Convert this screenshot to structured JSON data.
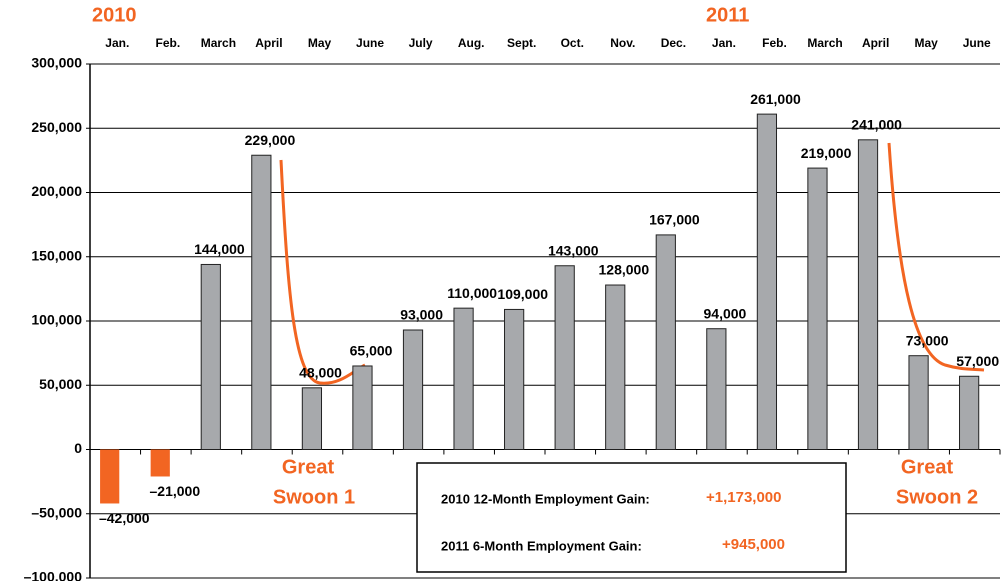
{
  "chart_data": {
    "type": "bar",
    "categories": [
      "Jan.",
      "Feb.",
      "March",
      "April",
      "May",
      "June",
      "July",
      "Aug.",
      "Sept.",
      "Oct.",
      "Nov.",
      "Dec.",
      "Jan.",
      "Feb.",
      "March",
      "April",
      "May",
      "June"
    ],
    "values": [
      -42000,
      -21000,
      144000,
      229000,
      48000,
      65000,
      93000,
      110000,
      109000,
      143000,
      128000,
      167000,
      94000,
      261000,
      219000,
      241000,
      73000,
      57000
    ],
    "value_labels": [
      "–42,000",
      "–21,000",
      "144,000",
      "229,000",
      "48,000",
      "65,000",
      "93,000",
      "110,000",
      "109,000",
      "143,000",
      "128,000",
      "167,000",
      "94,000",
      "261,000",
      "219,000",
      "241,000",
      "73,000",
      "57,000"
    ],
    "colors": [
      "#f26522",
      "#f26522",
      "#a7a9ac",
      "#a7a9ac",
      "#a7a9ac",
      "#a7a9ac",
      "#a7a9ac",
      "#a7a9ac",
      "#a7a9ac",
      "#a7a9ac",
      "#a7a9ac",
      "#a7a9ac",
      "#a7a9ac",
      "#a7a9ac",
      "#a7a9ac",
      "#a7a9ac",
      "#a7a9ac",
      "#a7a9ac"
    ],
    "ylim": [
      -100000,
      300000
    ],
    "yticks": [
      {
        "value": -100000,
        "label": "–100,000"
      },
      {
        "value": -50000,
        "label": "–50,000"
      },
      0,
      {
        "value": 50000,
        "label": "50,000"
      },
      {
        "value": 100000,
        "label": "100,000"
      },
      {
        "value": 150000,
        "label": "150,000"
      },
      {
        "value": 200000,
        "label": "200,000"
      },
      {
        "value": 250000,
        "label": "250,000"
      },
      {
        "value": 300000,
        "label": "300,000"
      }
    ],
    "grid": true,
    "annotations": {
      "year_2010": "2010",
      "year_2011": "2011",
      "swoon_1": [
        "Great",
        "Swoon 1"
      ],
      "swoon_2": [
        "Great",
        "Swoon 2"
      ],
      "gain_2010_label": "2010 12-Month Employment Gain:",
      "gain_2010_value": "+1,173,000",
      "gain_2011_label": "2011 6-Month Employment Gain:",
      "gain_2011_value": "+945,000"
    }
  }
}
